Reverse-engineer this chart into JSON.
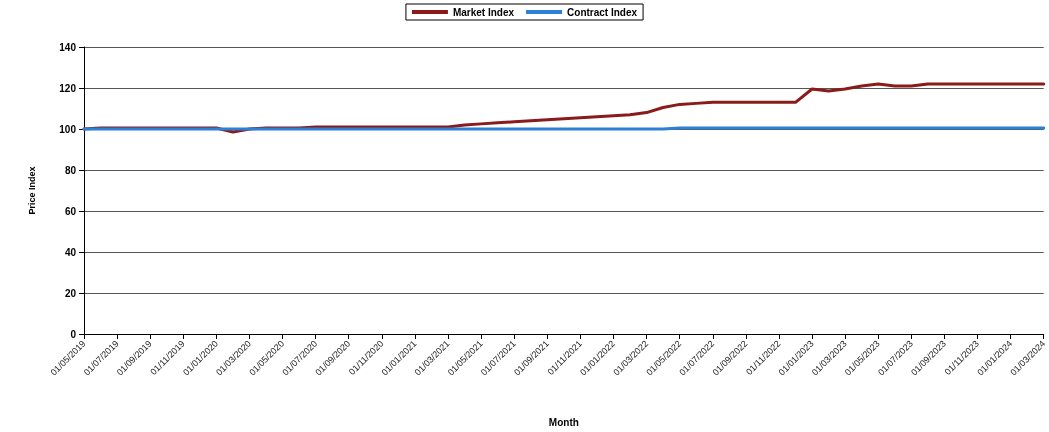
{
  "chart_data": {
    "type": "line",
    "xlabel": "Month",
    "ylabel": "Price Index",
    "categories": [
      "01/05/2019",
      null,
      "01/07/2019",
      null,
      "01/09/2019",
      null,
      "01/11/2019",
      null,
      "01/01/2020",
      null,
      "01/03/2020",
      null,
      "01/05/2020",
      null,
      "01/07/2020",
      null,
      "01/09/2020",
      null,
      "01/11/2020",
      null,
      "01/01/2021",
      null,
      "01/03/2021",
      null,
      "01/05/2021",
      null,
      "01/07/2021",
      null,
      "01/09/2021",
      null,
      "01/11/2021",
      null,
      "01/01/2022",
      null,
      "01/03/2022",
      null,
      "01/05/2022",
      null,
      "01/07/2022",
      null,
      "01/09/2022",
      null,
      "01/11/2022",
      null,
      "01/01/2023",
      null,
      "01/03/2023",
      null,
      "01/05/2023",
      null,
      "01/07/2023",
      null,
      "01/09/2023",
      null,
      "01/11/2023",
      null,
      "01/01/2024",
      null,
      "01/03/2024"
    ],
    "series": [
      {
        "name": "Market Index",
        "color": "#8b1a1a",
        "values": [
          100,
          100.5,
          100.5,
          100.5,
          100.5,
          100.5,
          100.5,
          100.5,
          100.5,
          98.5,
          100,
          100.5,
          100.5,
          100.5,
          101,
          101,
          101,
          101,
          101,
          101,
          101,
          101,
          101,
          102,
          102.5,
          103,
          103.5,
          104,
          104.5,
          105,
          105.5,
          106,
          106.5,
          107,
          108,
          110.5,
          112,
          112.5,
          113,
          113,
          113,
          113,
          113,
          113,
          119.5,
          118.5,
          119.5,
          121,
          122,
          121,
          121,
          122,
          122,
          122,
          122,
          122,
          122,
          122,
          122
        ]
      },
      {
        "name": "Contract Index",
        "color": "#2e7fd6",
        "values": [
          100,
          100,
          100,
          100,
          100,
          100,
          100,
          100,
          100,
          100,
          100,
          100,
          100,
          100,
          100,
          100,
          100,
          100,
          100,
          100,
          100,
          100,
          100,
          100,
          100,
          100,
          100,
          100,
          100,
          100,
          100,
          100,
          100,
          100,
          100,
          100,
          100.5,
          100.5,
          100.5,
          100.5,
          100.5,
          100.5,
          100.5,
          100.5,
          100.5,
          100.5,
          100.5,
          100.5,
          100.5,
          100.5,
          100.5,
          100.5,
          100.5,
          100.5,
          100.5,
          100.5,
          100.5,
          100.5,
          100.5
        ]
      }
    ],
    "ylim": [
      0,
      140
    ],
    "yticks": [
      0,
      20,
      40,
      60,
      80,
      100,
      120,
      140
    ],
    "grid": "y",
    "legend": "top",
    "marker": "none",
    "line_style": "solid"
  }
}
